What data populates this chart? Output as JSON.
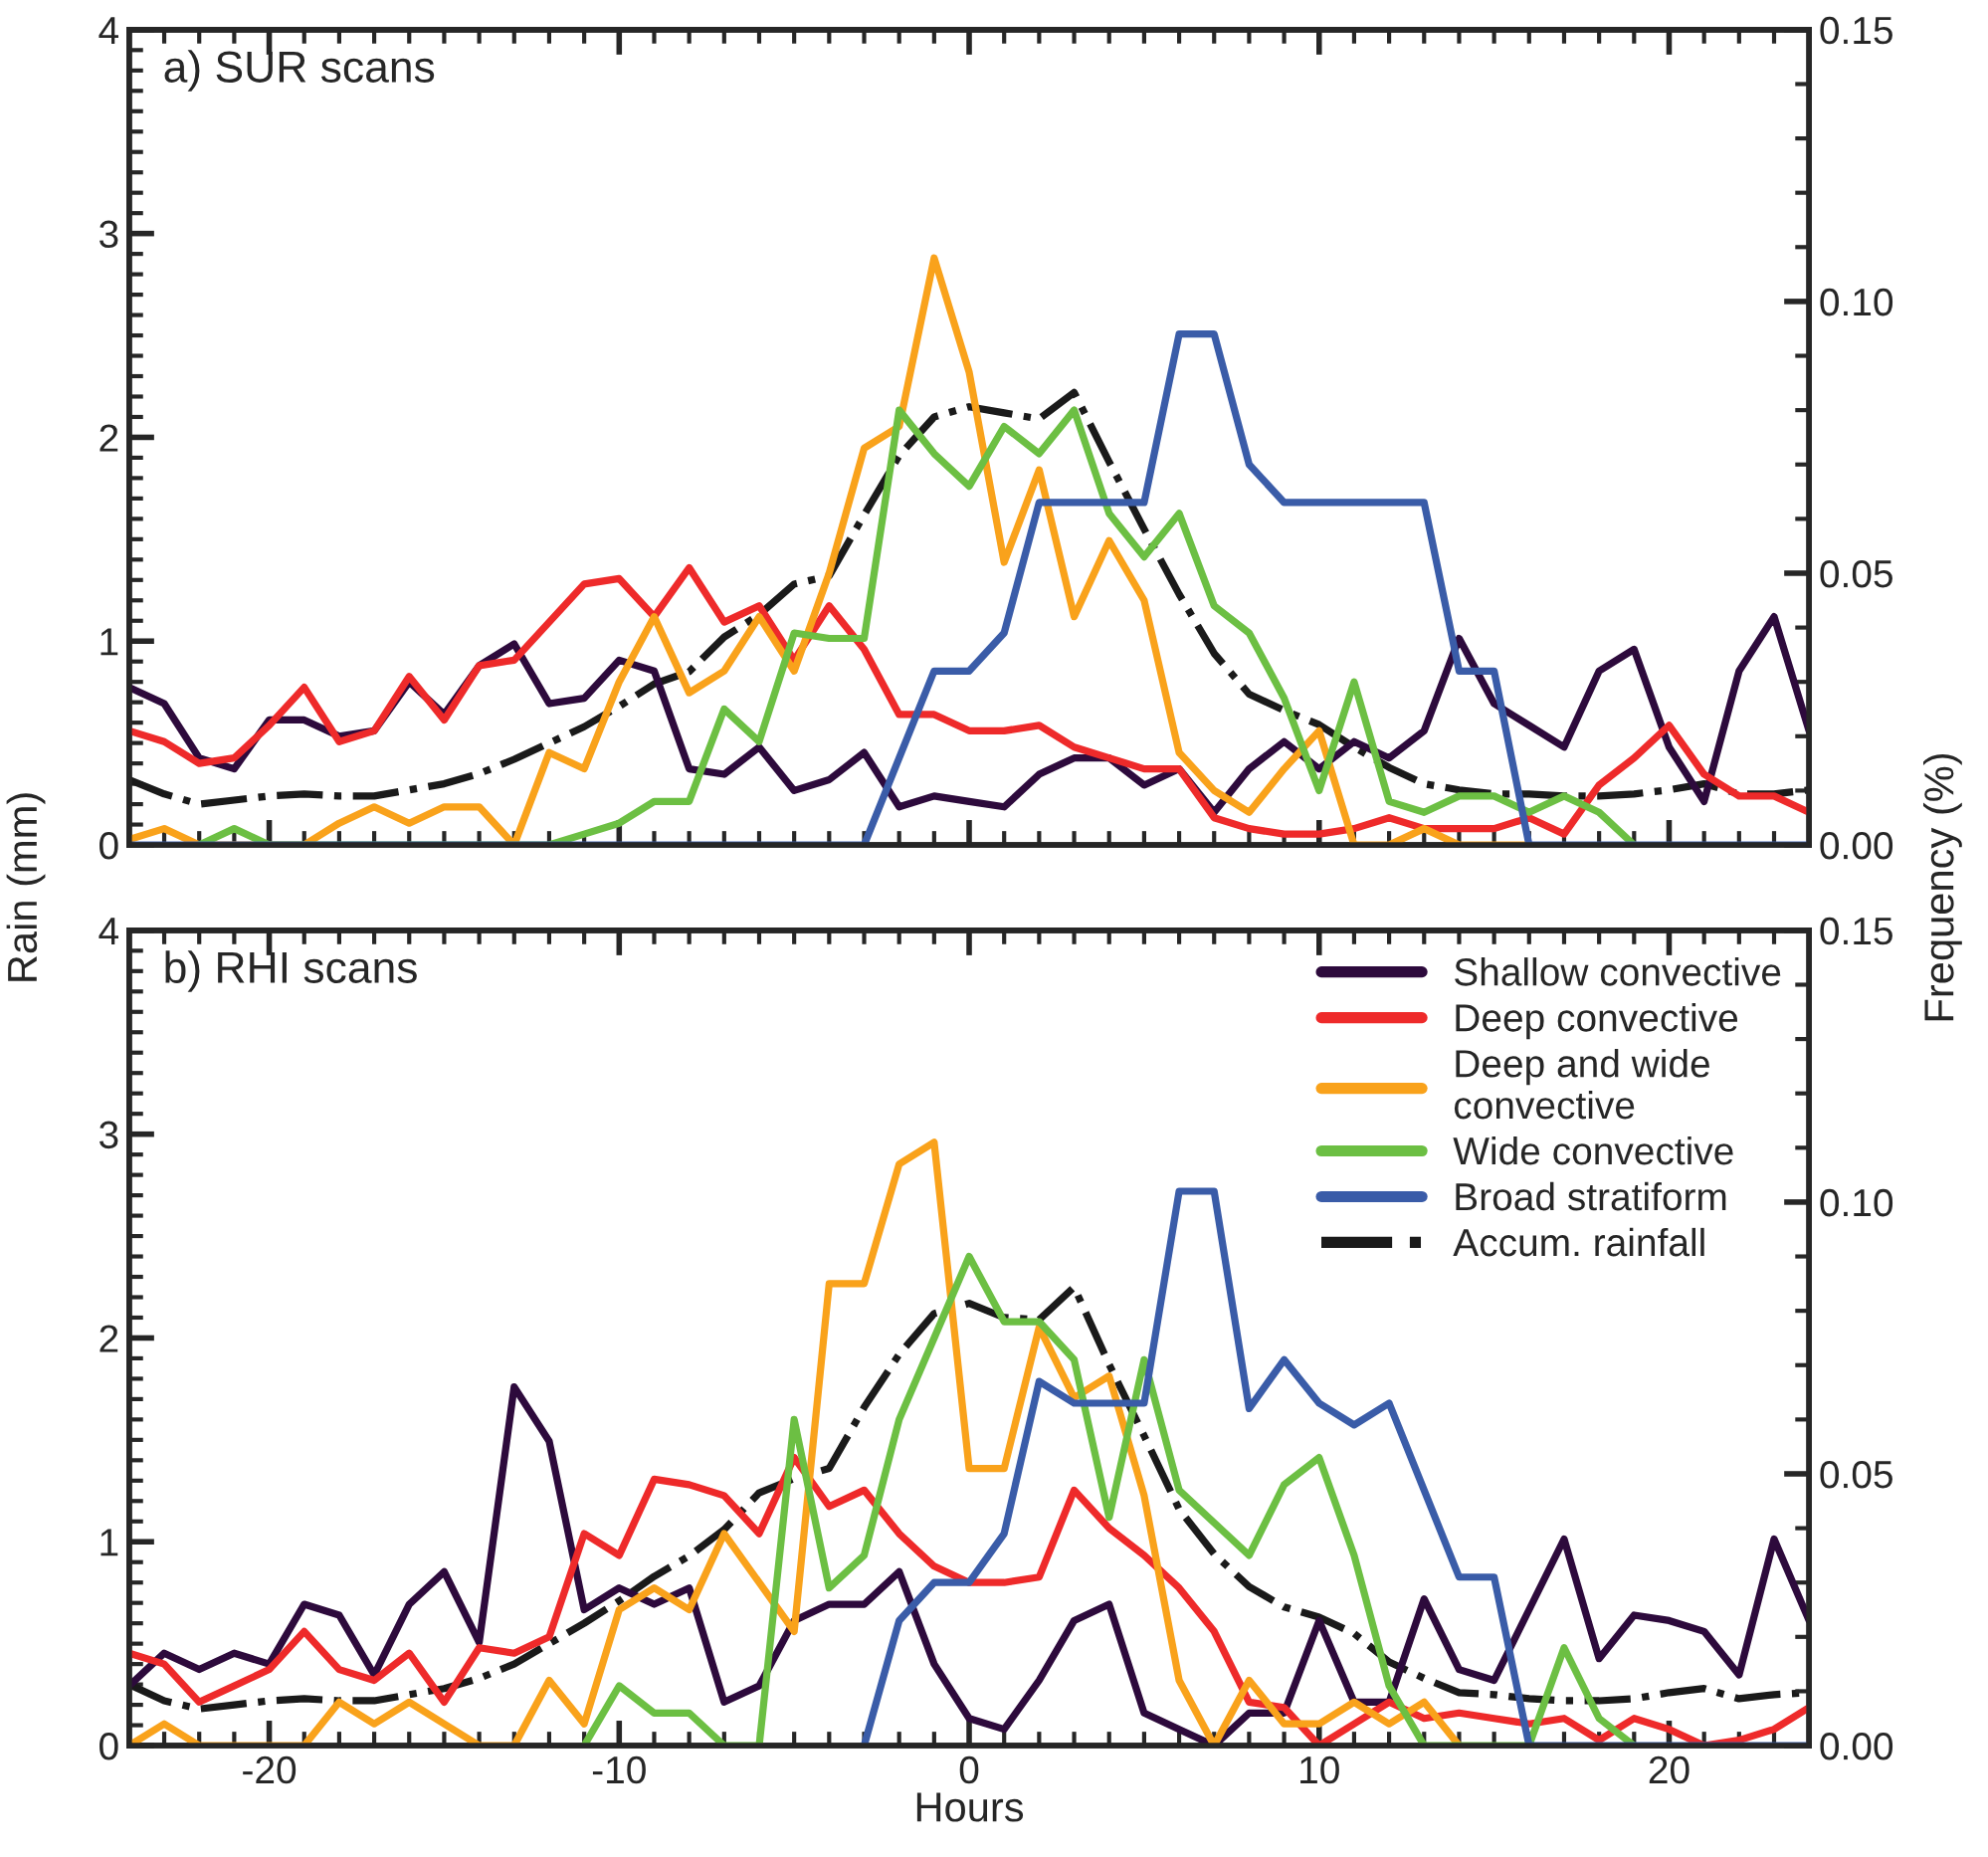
{
  "chart_data": [
    {
      "type": "line",
      "title": "a) SUR scans",
      "ylabel": "Rain (mm)",
      "y2label": "Frequency (%)",
      "tick_labels": "y",
      "x": [
        -24,
        -23,
        -22,
        -21,
        -20,
        -19,
        -18,
        -17,
        -16,
        -15,
        -14,
        -13,
        -12,
        -11,
        -10,
        -9,
        -8,
        -7,
        -6,
        -5,
        -4,
        -3,
        -2,
        -1,
        0,
        1,
        2,
        3,
        4,
        5,
        6,
        7,
        8,
        9,
        10,
        11,
        12,
        13,
        14,
        15,
        16,
        17,
        18,
        19,
        20,
        21,
        22,
        23,
        24
      ],
      "xlim": [
        -24,
        24
      ],
      "xticks": [
        -20,
        -10,
        0,
        10,
        20
      ],
      "ylim": [
        0,
        4
      ],
      "yticks": [
        0,
        1,
        2,
        3,
        4
      ],
      "y2lim": [
        0,
        0.15
      ],
      "y2ticks": [
        {
          "value": 0,
          "label": "0.00"
        },
        {
          "value": 0.05,
          "label": "0.05"
        },
        {
          "value": 0.1,
          "label": "0.10"
        },
        {
          "value": 0.15,
          "label": "0.15"
        }
      ],
      "series": [
        {
          "color": "#2d0a3c",
          "axis": "y2",
          "values": [
            0.029,
            0.026,
            0.016,
            0.014,
            0.023,
            0.023,
            0.02,
            0.021,
            0.03,
            0.024,
            0.033,
            0.037,
            0.026,
            0.027,
            0.034,
            0.032,
            0.014,
            0.013,
            0.018,
            0.01,
            0.012,
            0.017,
            0.007,
            0.009,
            0.008,
            0.007,
            0.013,
            0.016,
            0.016,
            0.011,
            0.014,
            0.006,
            0.014,
            0.019,
            0.014,
            0.019,
            0.016,
            0.021,
            0.038,
            0.026,
            0.022,
            0.018,
            0.032,
            0.036,
            0.018,
            0.008,
            0.032,
            0.042,
            0.021
          ]
        },
        {
          "color": "#ee2a2a",
          "axis": "y2",
          "values": [
            0.021,
            0.019,
            0.015,
            0.016,
            0.022,
            0.029,
            0.019,
            0.021,
            0.031,
            0.023,
            0.033,
            0.034,
            0.041,
            0.048,
            0.049,
            0.042,
            0.051,
            0.041,
            0.044,
            0.034,
            0.044,
            0.036,
            0.024,
            0.024,
            0.021,
            0.021,
            0.022,
            0.018,
            0.016,
            0.014,
            0.014,
            0.005,
            0.003,
            0.002,
            0.002,
            0.003,
            0.005,
            0.003,
            0.003,
            0.003,
            0.005,
            0.002,
            0.011,
            0.016,
            0.022,
            0.013,
            0.009,
            0.009,
            0.006
          ]
        },
        {
          "color": "#f9a21b",
          "axis": "y2",
          "values": [
            0.001,
            0.003,
            0,
            0,
            0,
            0,
            0.004,
            0.007,
            0.004,
            0.007,
            0.007,
            0,
            0.017,
            0.014,
            0.03,
            0.042,
            0.028,
            0.032,
            0.042,
            0.032,
            0.05,
            0.073,
            0.077,
            0.108,
            0.087,
            0.052,
            0.069,
            0.042,
            0.056,
            0.045,
            0.017,
            0.01,
            0.006,
            0.014,
            0.021,
            0,
            0,
            0.003,
            0,
            0,
            0,
            null,
            null,
            null,
            null,
            null,
            null,
            null,
            null
          ]
        },
        {
          "color": "#6cbf43",
          "axis": "y2",
          "values": [
            null,
            null,
            0,
            0.003,
            0,
            0,
            0,
            0,
            0,
            0,
            0,
            0,
            0,
            0.002,
            0.004,
            0.008,
            0.008,
            0.025,
            0.019,
            0.039,
            0.038,
            0.038,
            0.08,
            0.072,
            0.066,
            0.077,
            0.072,
            0.08,
            0.061,
            0.053,
            0.061,
            0.044,
            0.039,
            0.027,
            0.01,
            0.03,
            0.008,
            0.006,
            0.009,
            0.009,
            0.006,
            0.009,
            0.006,
            0,
            null,
            null,
            null,
            null,
            null
          ]
        },
        {
          "color": "#3a5ca8",
          "axis": "y2",
          "values": [
            0,
            0,
            0,
            0,
            0,
            0,
            0,
            0,
            0,
            0,
            0,
            0,
            0,
            0,
            0,
            0,
            0,
            0,
            0,
            0,
            0,
            0,
            0.016,
            0.032,
            0.032,
            0.039,
            0.063,
            0.063,
            0.063,
            0.063,
            0.094,
            0.094,
            0.07,
            0.063,
            0.063,
            0.063,
            0.063,
            0.063,
            0.032,
            0.032,
            0,
            0,
            0,
            0,
            0,
            0,
            0,
            0,
            0
          ]
        },
        {
          "color": "#1a1a1a",
          "line_style": "dashdot",
          "values": [
            0.32,
            0.25,
            0.2,
            0.22,
            0.24,
            0.25,
            0.24,
            0.24,
            0.27,
            0.3,
            0.35,
            0.42,
            0.5,
            0.58,
            0.68,
            0.79,
            0.85,
            1.02,
            1.13,
            1.28,
            1.32,
            1.62,
            1.91,
            2.1,
            2.15,
            2.12,
            2.09,
            2.22,
            1.88,
            1.55,
            1.23,
            0.94,
            0.74,
            0.66,
            0.59,
            0.48,
            0.38,
            0.3,
            0.27,
            0.25,
            0.25,
            0.24,
            0.24,
            0.25,
            0.27,
            0.3,
            0.25,
            0.25,
            0.27
          ]
        }
      ]
    },
    {
      "type": "line",
      "title": "b) RHI scans",
      "xlabel": "Hours",
      "legend": "top right",
      "x": [
        -24,
        -23,
        -22,
        -21,
        -20,
        -19,
        -18,
        -17,
        -16,
        -15,
        -14,
        -13,
        -12,
        -11,
        -10,
        -9,
        -8,
        -7,
        -6,
        -5,
        -4,
        -3,
        -2,
        -1,
        0,
        1,
        2,
        3,
        4,
        5,
        6,
        7,
        8,
        9,
        10,
        11,
        12,
        13,
        14,
        15,
        16,
        17,
        18,
        19,
        20,
        21,
        22,
        23,
        24
      ],
      "xlim": [
        -24,
        24
      ],
      "xticks": [
        -20,
        -10,
        0,
        10,
        20
      ],
      "ylim": [
        0,
        4
      ],
      "yticks": [
        0,
        1,
        2,
        3,
        4
      ],
      "y2lim": [
        0,
        0.15
      ],
      "y2ticks": [
        {
          "value": 0,
          "label": "0.00"
        },
        {
          "value": 0.05,
          "label": "0.05"
        },
        {
          "value": 0.1,
          "label": "0.10"
        },
        {
          "value": 0.15,
          "label": "0.15"
        }
      ],
      "series": [
        {
          "name": "Shallow convective",
          "color": "#2d0a3c",
          "axis": "y2",
          "values": [
            0.011,
            0.017,
            0.014,
            0.017,
            0.015,
            0.026,
            0.024,
            0.013,
            0.026,
            0.032,
            0.019,
            0.066,
            0.056,
            0.025,
            0.029,
            0.026,
            0.029,
            0.008,
            0.011,
            0.023,
            0.026,
            0.026,
            0.032,
            0.015,
            0.005,
            0.003,
            0.012,
            0.023,
            0.026,
            0.006,
            0.003,
            0,
            0.006,
            0.006,
            0.023,
            0.008,
            0.008,
            0.027,
            0.014,
            0.012,
            0.025,
            0.038,
            0.016,
            0.024,
            0.023,
            0.021,
            0.013,
            0.038,
            0.023
          ]
        },
        {
          "name": "Deep convective",
          "color": "#ee2a2a",
          "axis": "y2",
          "values": [
            0.017,
            0.015,
            0.008,
            0.011,
            0.014,
            0.021,
            0.014,
            0.012,
            0.017,
            0.008,
            0.018,
            0.017,
            0.02,
            0.039,
            0.035,
            0.049,
            0.048,
            0.046,
            0.039,
            0.053,
            0.044,
            0.047,
            0.039,
            0.033,
            0.03,
            0.03,
            0.031,
            0.047,
            0.04,
            0.035,
            0.029,
            0.021,
            0.008,
            0.007,
            0,
            0.004,
            0.008,
            0.005,
            0.006,
            0.005,
            0.004,
            0.005,
            0.001,
            0.005,
            0.003,
            0,
            0.001,
            0.003,
            0.007
          ]
        },
        {
          "name": "Deep and wide\nconvective",
          "color": "#f9a21b",
          "axis": "y2",
          "values": [
            0,
            0.004,
            0,
            0,
            0,
            0,
            0.008,
            0.004,
            0.008,
            0.004,
            0,
            0,
            0.012,
            0.004,
            0.025,
            0.029,
            0.025,
            0.039,
            0.03,
            0.021,
            0.085,
            0.085,
            0.107,
            0.111,
            0.051,
            0.051,
            0.077,
            0.064,
            0.068,
            0.046,
            0.012,
            0,
            0.012,
            0.004,
            0.004,
            0.008,
            0.004,
            0.008,
            0,
            null,
            null,
            null,
            null,
            null,
            null,
            null,
            null,
            null,
            null
          ]
        },
        {
          "name": "Wide convective",
          "color": "#6cbf43",
          "axis": "y2",
          "values": [
            null,
            null,
            null,
            null,
            null,
            null,
            null,
            null,
            null,
            null,
            null,
            null,
            null,
            0,
            0.011,
            0.006,
            0.006,
            0,
            0,
            0.06,
            0.029,
            0.035,
            0.06,
            0.075,
            0.09,
            0.078,
            0.078,
            0.071,
            0.042,
            0.071,
            0.047,
            0.041,
            0.035,
            0.048,
            0.053,
            0.035,
            0.011,
            0,
            0,
            0,
            0,
            0.018,
            0.005,
            0,
            null,
            null,
            null,
            null,
            null
          ]
        },
        {
          "name": "Broad stratiform",
          "color": "#3a5ca8",
          "axis": "y2",
          "values": [
            null,
            null,
            null,
            null,
            null,
            null,
            null,
            null,
            null,
            null,
            null,
            null,
            null,
            null,
            null,
            null,
            null,
            null,
            null,
            null,
            null,
            0,
            0.023,
            0.03,
            0.03,
            0.039,
            0.067,
            0.063,
            0.063,
            0.063,
            0.102,
            0.102,
            0.062,
            0.071,
            0.063,
            0.059,
            0.063,
            0.047,
            0.031,
            0.031,
            0,
            0,
            0,
            0,
            0,
            0,
            0,
            0,
            0
          ]
        },
        {
          "name": "Accum. rainfall",
          "color": "#1a1a1a",
          "line_style": "dashdot",
          "values": [
            0.3,
            0.22,
            0.18,
            0.2,
            0.22,
            0.23,
            0.22,
            0.22,
            0.25,
            0.28,
            0.33,
            0.4,
            0.5,
            0.6,
            0.71,
            0.83,
            0.93,
            1.06,
            1.24,
            1.31,
            1.36,
            1.66,
            1.92,
            2.12,
            2.17,
            2.1,
            2.09,
            2.25,
            1.87,
            1.52,
            1.16,
            0.94,
            0.78,
            0.68,
            0.63,
            0.55,
            0.41,
            0.33,
            0.26,
            0.25,
            0.23,
            0.22,
            0.22,
            0.23,
            0.26,
            0.28,
            0.23,
            0.25,
            0.26
          ]
        }
      ]
    }
  ]
}
